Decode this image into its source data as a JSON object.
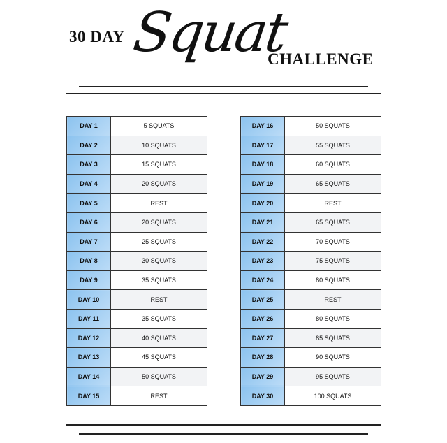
{
  "title": {
    "prefix": "30 DAY",
    "script": "Squat",
    "suffix": "CHALLENGE"
  },
  "colors": {
    "day_cell": "#a5d0f3",
    "border": "#333333",
    "alt_row": "#f2f3f5"
  },
  "days": [
    {
      "day": "DAY 1",
      "task": "5 SQUATS"
    },
    {
      "day": "DAY 2",
      "task": "10 SQUATS"
    },
    {
      "day": "DAY 3",
      "task": "15 SQUATS"
    },
    {
      "day": "DAY 4",
      "task": "20 SQUATS"
    },
    {
      "day": "DAY 5",
      "task": "REST"
    },
    {
      "day": "DAY 6",
      "task": "20 SQUATS"
    },
    {
      "day": "DAY 7",
      "task": "25 SQUATS"
    },
    {
      "day": "DAY 8",
      "task": "30 SQUATS"
    },
    {
      "day": "DAY 9",
      "task": "35 SQUATS"
    },
    {
      "day": "DAY 10",
      "task": "REST"
    },
    {
      "day": "DAY 11",
      "task": "35 SQUATS"
    },
    {
      "day": "DAY 12",
      "task": "40 SQUATS"
    },
    {
      "day": "DAY 13",
      "task": "45 SQUATS"
    },
    {
      "day": "DAY 14",
      "task": "50 SQUATS"
    },
    {
      "day": "DAY 15",
      "task": "REST"
    },
    {
      "day": "DAY 16",
      "task": "50 SQUATS"
    },
    {
      "day": "DAY 17",
      "task": "55 SQUATS"
    },
    {
      "day": "DAY 18",
      "task": "60 SQUATS"
    },
    {
      "day": "DAY 19",
      "task": "65 SQUATS"
    },
    {
      "day": "DAY 20",
      "task": "REST"
    },
    {
      "day": "DAY 21",
      "task": "65 SQUATS"
    },
    {
      "day": "DAY 22",
      "task": "70 SQUATS"
    },
    {
      "day": "DAY 23",
      "task": "75 SQUATS"
    },
    {
      "day": "DAY 24",
      "task": "80 SQUATS"
    },
    {
      "day": "DAY 25",
      "task": "REST"
    },
    {
      "day": "DAY 26",
      "task": "80 SQUATS"
    },
    {
      "day": "DAY 27",
      "task": "85 SQUATS"
    },
    {
      "day": "DAY 28",
      "task": "90 SQUATS"
    },
    {
      "day": "DAY 29",
      "task": "95 SQUATS"
    },
    {
      "day": "DAY 30",
      "task": "100 SQUATS"
    }
  ]
}
